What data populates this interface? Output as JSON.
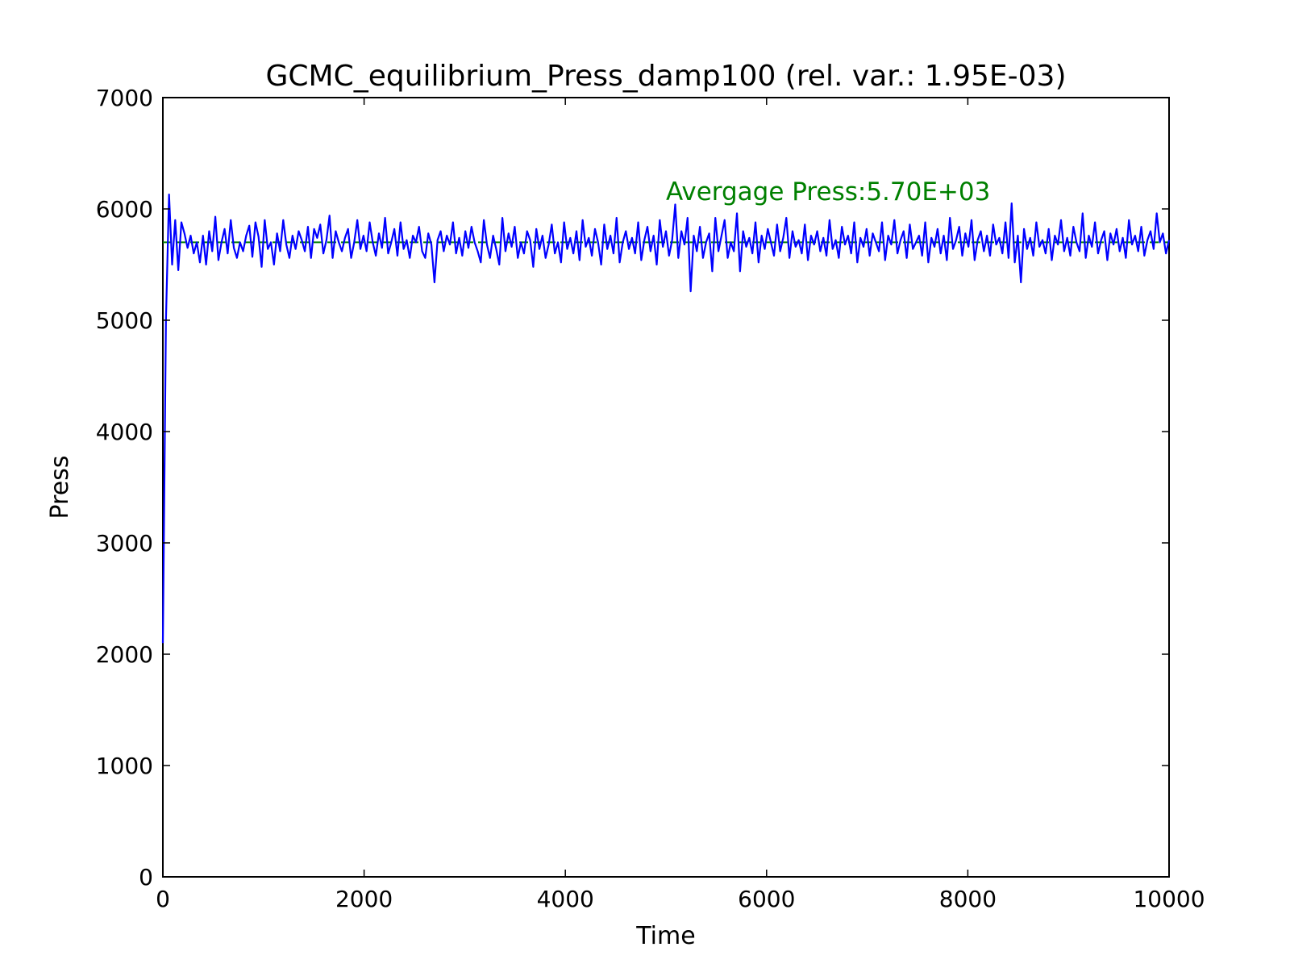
{
  "chart_data": {
    "type": "line",
    "title": "GCMC_equilibrium_Press_damp100 (rel. var.: 1.95E-03)",
    "xlabel": "Time",
    "ylabel": "Press",
    "xlim": [
      0,
      10000
    ],
    "ylim": [
      0,
      7000
    ],
    "xticks": [
      0,
      2000,
      4000,
      6000,
      8000,
      10000
    ],
    "yticks": [
      0,
      1000,
      2000,
      3000,
      4000,
      5000,
      6000,
      7000
    ],
    "grid": false,
    "series": [
      {
        "color": "#0000ff",
        "x_range": [
          0,
          10000
        ],
        "values": [
          2100,
          5000,
          6130,
          5500,
          5900,
          5450,
          5880,
          5780,
          5650,
          5760,
          5600,
          5700,
          5520,
          5760,
          5500,
          5800,
          5620,
          5930,
          5540,
          5700,
          5820,
          5600,
          5900,
          5650,
          5560,
          5700,
          5620,
          5760,
          5850,
          5570,
          5880,
          5750,
          5480,
          5900,
          5640,
          5700,
          5500,
          5780,
          5620,
          5900,
          5680,
          5560,
          5760,
          5640,
          5800,
          5720,
          5620,
          5840,
          5560,
          5820,
          5740,
          5860,
          5600,
          5720,
          5940,
          5560,
          5800,
          5700,
          5620,
          5740,
          5820,
          5560,
          5700,
          5900,
          5640,
          5760,
          5620,
          5880,
          5700,
          5580,
          5780,
          5650,
          5920,
          5600,
          5700,
          5820,
          5580,
          5880,
          5640,
          5720,
          5560,
          5760,
          5700,
          5840,
          5620,
          5560,
          5780,
          5680,
          5340,
          5720,
          5800,
          5620,
          5760,
          5680,
          5880,
          5600,
          5740,
          5580,
          5800,
          5650,
          5840,
          5700,
          5620,
          5520,
          5900,
          5680,
          5560,
          5760,
          5640,
          5500,
          5920,
          5620,
          5780,
          5660,
          5840,
          5560,
          5700,
          5600,
          5800,
          5720,
          5480,
          5820,
          5640,
          5760,
          5560,
          5680,
          5860,
          5600,
          5700,
          5520,
          5880,
          5640,
          5740,
          5600,
          5800,
          5540,
          5900,
          5660,
          5740,
          5580,
          5820,
          5700,
          5500,
          5860,
          5640,
          5760,
          5600,
          5920,
          5520,
          5700,
          5800,
          5640,
          5740,
          5600,
          5880,
          5540,
          5720,
          5840,
          5620,
          5760,
          5500,
          5900,
          5660,
          5800,
          5580,
          5720,
          6040,
          5560,
          5800,
          5680,
          5920,
          5260,
          5760,
          5620,
          5840,
          5560,
          5700,
          5780,
          5440,
          5920,
          5620,
          5760,
          5900,
          5560,
          5700,
          5620,
          5960,
          5440,
          5800,
          5660,
          5740,
          5600,
          5880,
          5520,
          5760,
          5640,
          5820,
          5700,
          5580,
          5860,
          5620,
          5740,
          5920,
          5560,
          5800,
          5660,
          5720,
          5600,
          5860,
          5540,
          5760,
          5680,
          5800,
          5620,
          5740,
          5580,
          5900,
          5640,
          5720,
          5560,
          5840,
          5680,
          5760,
          5600,
          5880,
          5520,
          5740,
          5660,
          5820,
          5580,
          5780,
          5700,
          5620,
          5880,
          5540,
          5760,
          5680,
          5900,
          5600,
          5720,
          5800,
          5560,
          5860,
          5640,
          5700,
          5760,
          5580,
          5880,
          5520,
          5740,
          5660,
          5820,
          5600,
          5760,
          5540,
          5920,
          5640,
          5720,
          5840,
          5580,
          5780,
          5660,
          5900,
          5540,
          5720,
          5800,
          5620,
          5760,
          5580,
          5860,
          5680,
          5740,
          5600,
          5880,
          5560,
          6050,
          5520,
          5760,
          5340,
          5820,
          5640,
          5740,
          5580,
          5880,
          5660,
          5720,
          5600,
          5820,
          5540,
          5760,
          5680,
          5900,
          5620,
          5740,
          5580,
          5840,
          5700,
          5620,
          5960,
          5560,
          5760,
          5660,
          5880,
          5600,
          5720,
          5800,
          5540,
          5780,
          5680,
          5820,
          5620,
          5740,
          5560,
          5900,
          5680,
          5760,
          5620,
          5840,
          5580,
          5720,
          5800,
          5640,
          5960,
          5700,
          5780,
          5600,
          5720
        ]
      }
    ],
    "reference_lines": [
      {
        "y": 5700,
        "color": "#008000",
        "style": "dashed"
      }
    ],
    "annotation": {
      "text": "Avergage Press:5.70E+03",
      "x": 5000,
      "y": 6080,
      "color": "#008000"
    }
  }
}
